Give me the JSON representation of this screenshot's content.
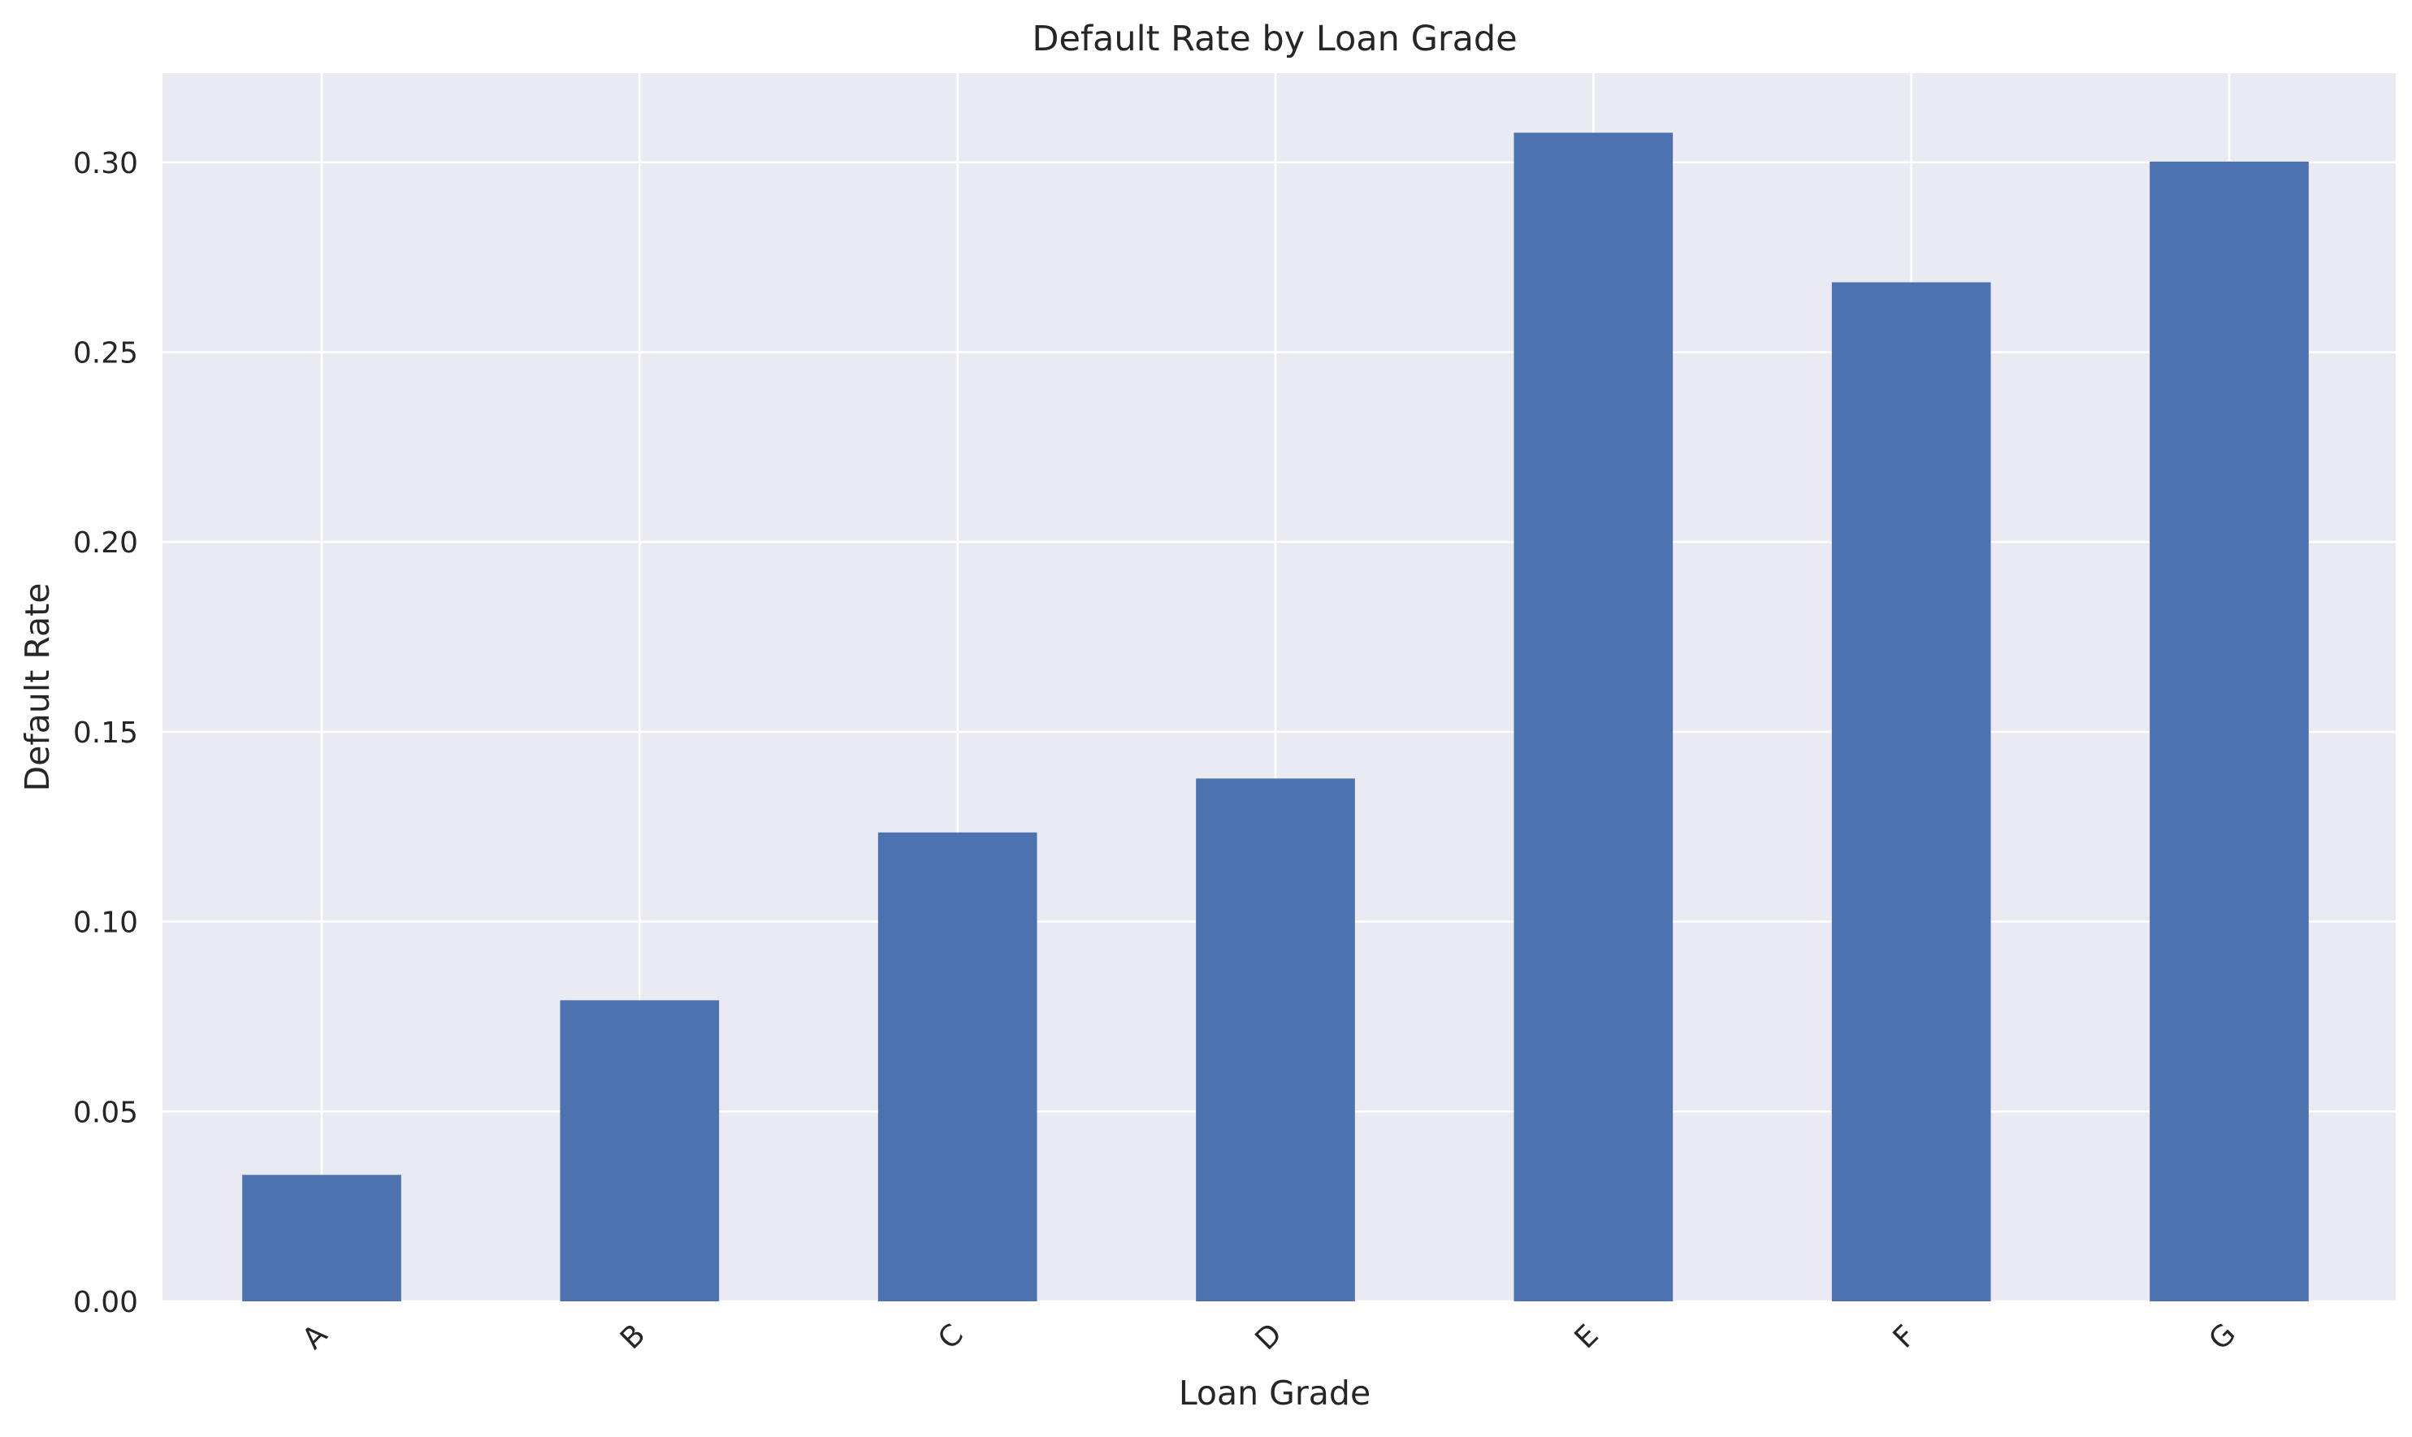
{
  "chart_data": {
    "type": "bar",
    "title": "Default Rate by Loan Grade",
    "xlabel": "Loan Grade",
    "ylabel": "Default Rate",
    "categories": [
      "A",
      "B",
      "C",
      "D",
      "E",
      "F",
      "G"
    ],
    "values": [
      0.0333,
      0.0793,
      0.1235,
      0.1377,
      0.3078,
      0.2684,
      0.3002
    ],
    "ylim": [
      0,
      0.3235
    ],
    "yticks": [
      0.0,
      0.05,
      0.1,
      0.15,
      0.2,
      0.25,
      0.3
    ],
    "ytick_labels": [
      "0.00",
      "0.05",
      "0.10",
      "0.15",
      "0.20",
      "0.25",
      "0.30"
    ],
    "grid": true,
    "bar_color": "#4C72B0",
    "background_color": "#EAEAF2"
  }
}
